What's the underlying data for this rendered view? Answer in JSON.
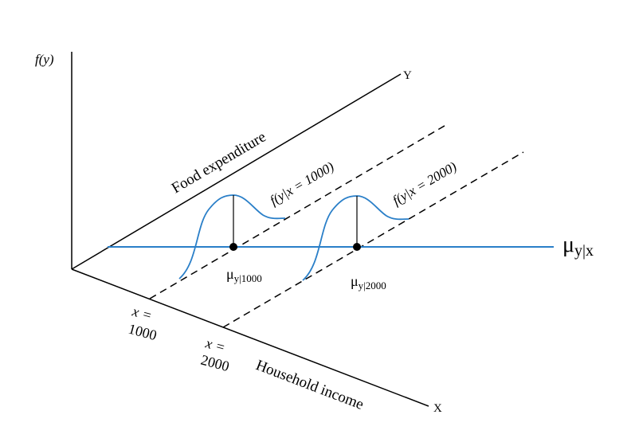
{
  "labels": {
    "f_axis": "f(y)",
    "y_axis": "Y",
    "x_axis": "X",
    "food_expenditure": "Food expenditure",
    "household_income": "Household income",
    "cond_1000": "f(y|x = 1000)",
    "cond_2000": "f(y|x = 2000)",
    "x_eq_1": "x =",
    "x_val_1": "1000",
    "x_eq_2": "x =",
    "x_val_2": "2000",
    "mu_1_main": "μ",
    "mu_1_sub": "y|1000",
    "mu_2_main": "μ",
    "mu_2_sub": "y|2000",
    "mu_line_main": "μ",
    "mu_line_sub": "y|x"
  },
  "colors": {
    "curve": "#2a7fc8",
    "axes": "#000000"
  }
}
